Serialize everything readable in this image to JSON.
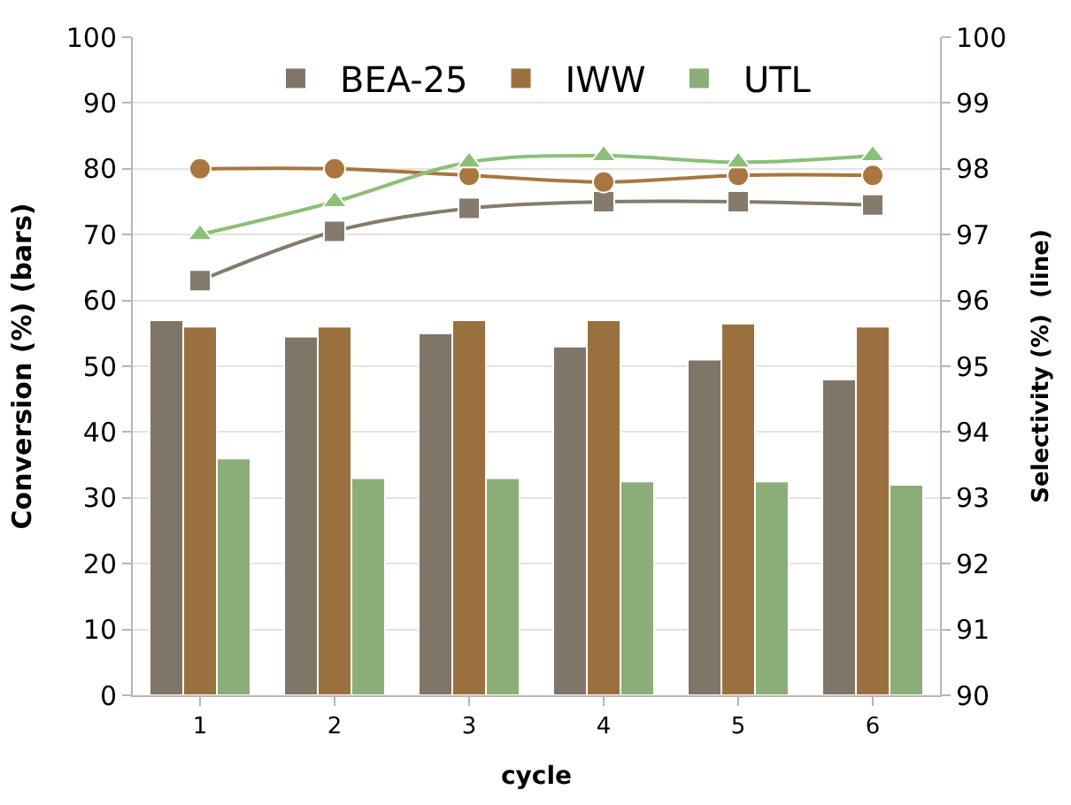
{
  "chart_data": {
    "type": "bar",
    "xlabel": "cycle",
    "ylabel": "Conversion (%) (bars)",
    "y2label": "Selectivity (%)  (line)",
    "categories": [
      "1",
      "2",
      "3",
      "4",
      "5",
      "6"
    ],
    "series": [
      {
        "name": "BEA-25",
        "color": "#7f7668",
        "values": [
          57,
          54.5,
          55,
          53,
          51,
          48
        ]
      },
      {
        "name": "IWW",
        "color": "#9a713e",
        "values": [
          56,
          56,
          57,
          57,
          56.5,
          56
        ]
      },
      {
        "name": "UTL",
        "color": "#8bae78",
        "values": [
          36,
          33,
          33,
          32.5,
          32.5,
          32
        ]
      },
      {
        "type": "line",
        "axis": "y2",
        "marker": "square",
        "color": "#857b6d",
        "values": [
          96.3,
          97.05,
          97.4,
          97.5,
          97.5,
          97.45
        ]
      },
      {
        "type": "line",
        "axis": "y2",
        "marker": "circle",
        "color": "#a8763e",
        "values": [
          98,
          98,
          97.9,
          97.8,
          97.9,
          97.9
        ]
      },
      {
        "type": "line",
        "axis": "y2",
        "marker": "triangle",
        "color": "#8cbf78",
        "values": [
          97,
          97.5,
          98.1,
          98.2,
          98.1,
          98.2
        ]
      }
    ],
    "ylim": [
      0,
      100
    ],
    "yticks": [
      0,
      10,
      20,
      30,
      40,
      50,
      60,
      70,
      80,
      90,
      100
    ],
    "y2lim": [
      90,
      100
    ],
    "y2ticks": [
      90,
      91,
      92,
      93,
      94,
      95,
      96,
      97,
      98,
      99,
      100
    ],
    "grid": "y",
    "legend": "top"
  }
}
